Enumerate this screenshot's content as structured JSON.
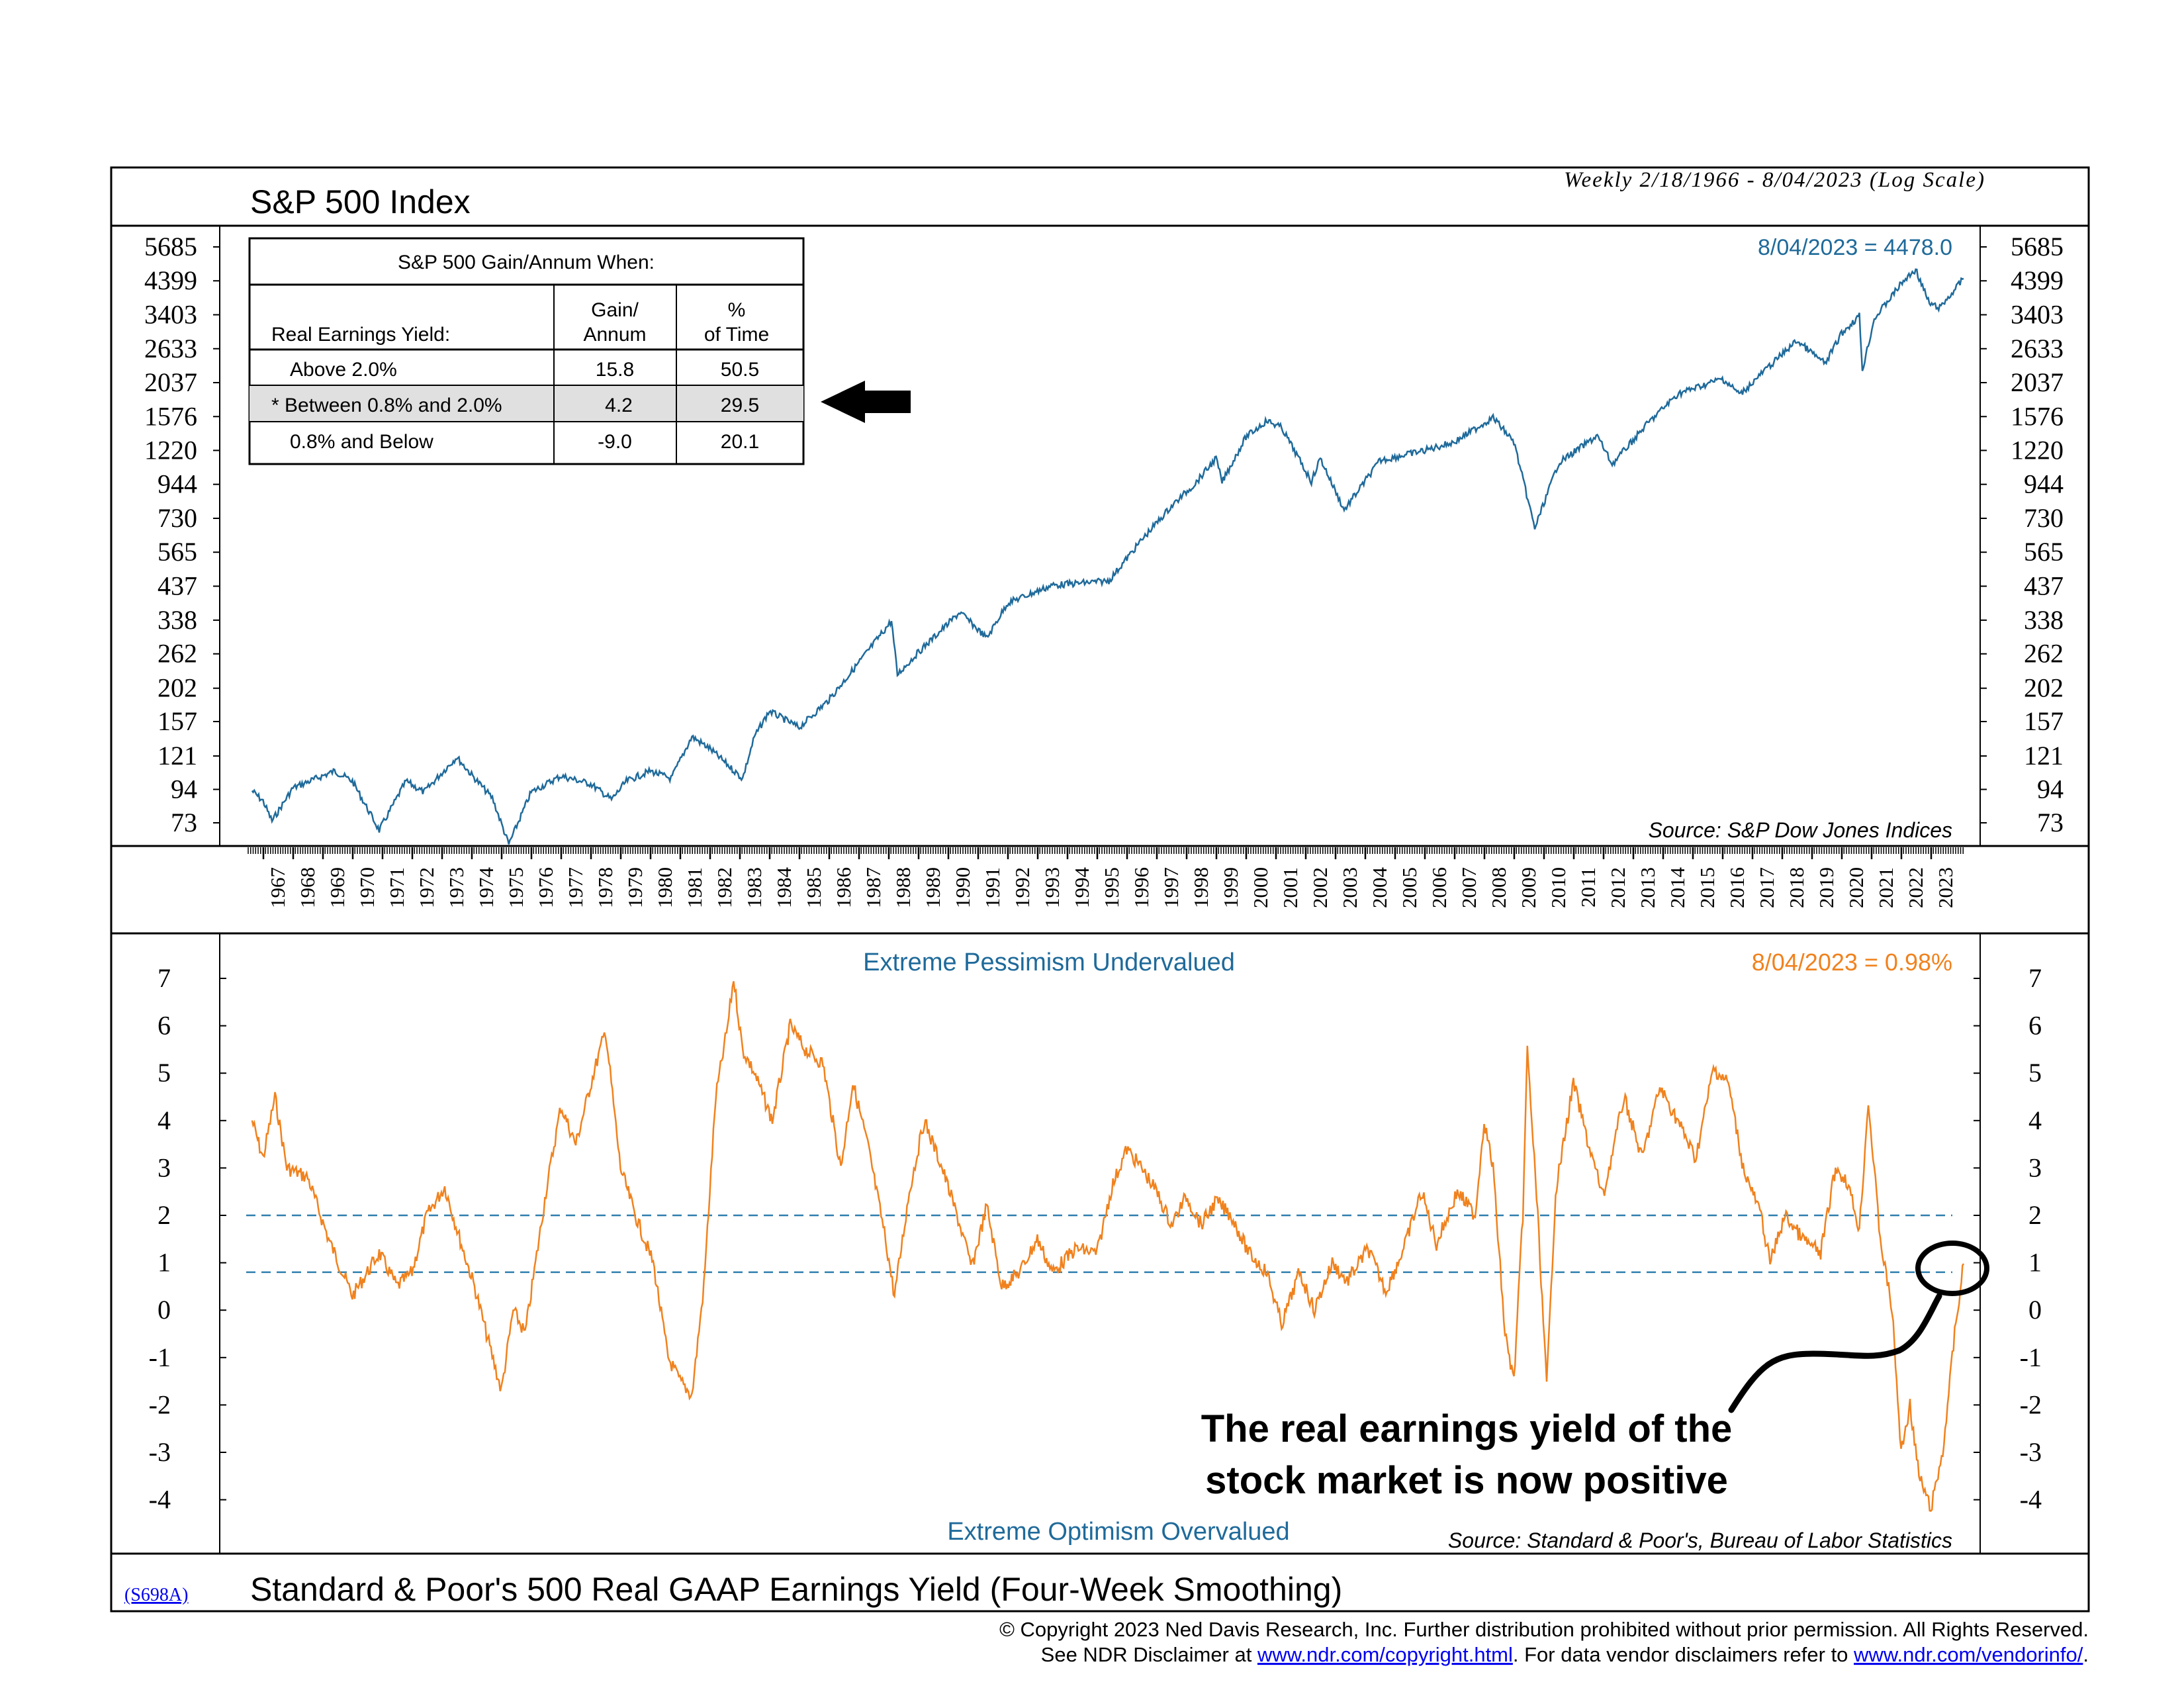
{
  "header": {
    "title": "S&P 500 Index",
    "subtitle": "Weekly 2/18/1966 - 8/04/2023 (Log Scale)"
  },
  "table": {
    "title": "S&P 500 Gain/Annum When:",
    "col_label": "Real Earnings Yield:",
    "col_gain_1": "Gain/",
    "col_gain_2": "Annum",
    "col_pct_1": "%",
    "col_pct_2": "of Time",
    "rows": [
      {
        "label": "Above 2.0%",
        "gain": "15.8",
        "pct": "50.5"
      },
      {
        "label": "* Between 0.8% and 2.0%",
        "gain": "4.2",
        "pct": "29.5",
        "highlight": true
      },
      {
        "label": "0.8% and Below",
        "gain": "-9.0",
        "pct": "20.1"
      }
    ],
    "arrow_icon": "arrow-left-icon"
  },
  "footer": {
    "code": "(S698A)",
    "title": "Standard & Poor's 500 Real GAAP Earnings Yield (Four-Week Smoothing)",
    "copyright": "© Copyright 2023 Ned Davis Research, Inc.  Further distribution prohibited without prior permission.  All Rights Reserved.",
    "disclaimer_prefix": "See NDR Disclaimer at ",
    "link1": "www.ndr.com/copyright.html",
    "disclaimer_mid": ". For data vendor disclaimers refer to ",
    "link2": "www.ndr.com/vendorinfo/",
    "disclaimer_suffix": "."
  },
  "annotation": {
    "line1": "The real earnings yield of the",
    "line2": "stock market is now positive"
  },
  "chart_data": [
    {
      "type": "line",
      "title": "S&P 500 Index",
      "scale": "log",
      "color": "#1f6a9a",
      "last_label": "8/04/2023 = 4478.0",
      "source": "Source: S&P Dow Jones Indices",
      "yticks": [
        73,
        94,
        121,
        157,
        202,
        262,
        338,
        437,
        565,
        730,
        944,
        1220,
        1576,
        2037,
        2633,
        3403,
        4399,
        5685
      ],
      "ylim": [
        73,
        5685
      ],
      "x": [
        1966.13,
        1966.5,
        1966.8,
        1967.5,
        1968.9,
        1969.5,
        1970.4,
        1971.3,
        1971.9,
        1973.0,
        1973.5,
        1974.2,
        1974.75,
        1975.5,
        1976.5,
        1977.5,
        1978.2,
        1978.7,
        1979.5,
        1980.2,
        1980.9,
        1981.5,
        1982.6,
        1983.0,
        1983.5,
        1984.5,
        1985.5,
        1986.5,
        1987.6,
        1987.8,
        1988.5,
        1989.9,
        1990.8,
        1991.5,
        1993.0,
        1994.9,
        1996.0,
        1997.0,
        1997.8,
        1998.5,
        1998.7,
        1999.5,
        2000.2,
        2000.7,
        2001.7,
        2002.0,
        2002.8,
        2004.0,
        2005.5,
        2006.5,
        2007.8,
        2008.5,
        2009.2,
        2010.0,
        2011.3,
        2011.8,
        2013.0,
        2014.0,
        2015.5,
        2016.1,
        2017.0,
        2018.0,
        2018.95,
        2019.5,
        2020.1,
        2020.2,
        2020.6,
        2021.5,
        2021.99,
        2022.45,
        2022.8,
        2023.2,
        2023.6
      ],
      "y": [
        93,
        86,
        74,
        95,
        108,
        100,
        69,
        100,
        92,
        120,
        105,
        88,
        62,
        92,
        104,
        98,
        87,
        100,
        108,
        102,
        140,
        128,
        102,
        140,
        170,
        150,
        185,
        245,
        336,
        224,
        265,
        359,
        295,
        385,
        440,
        455,
        620,
        800,
        950,
        1150,
        960,
        1350,
        1527,
        1450,
        965,
        1150,
        777,
        1130,
        1220,
        1300,
        1565,
        1300,
        677,
        1110,
        1363,
        1099,
        1500,
        1870,
        2100,
        1864,
        2270,
        2800,
        2351,
        2950,
        3380,
        2237,
        3300,
        4300,
        4796,
        3700,
        3583,
        4000,
        4478
      ]
    },
    {
      "type": "line",
      "title": "Standard & Poor's 500 Real GAAP Earnings Yield (Four-Week Smoothing)",
      "color": "#f0821e",
      "last_label": "8/04/2023 = 0.98%",
      "upper_label": "Extreme Pessimism Undervalued",
      "lower_label": "Extreme Optimism Overvalued",
      "source": "Source: Standard & Poor's, Bureau of Labor Statistics",
      "yticks": [
        -4,
        -3,
        -2,
        -1,
        0,
        1,
        2,
        3,
        4,
        5,
        6,
        7
      ],
      "ylim": [
        -4.3,
        7.2
      ],
      "reference_lines": [
        2.0,
        0.8
      ],
      "xticks": [
        1967,
        1968,
        1969,
        1970,
        1971,
        1972,
        1973,
        1974,
        1975,
        1976,
        1977,
        1978,
        1979,
        1980,
        1981,
        1982,
        1983,
        1984,
        1985,
        1986,
        1987,
        1988,
        1989,
        1990,
        1991,
        1992,
        1993,
        1994,
        1995,
        1996,
        1997,
        1998,
        1999,
        2000,
        2001,
        2002,
        2003,
        2004,
        2005,
        2006,
        2007,
        2008,
        2009,
        2010,
        2011,
        2012,
        2013,
        2014,
        2015,
        2016,
        2017,
        2018,
        2019,
        2020,
        2021,
        2022,
        2023
      ],
      "x": [
        1966.13,
        1966.5,
        1966.9,
        1967.3,
        1968.0,
        1968.7,
        1969.5,
        1970.4,
        1971.0,
        1971.5,
        1972.0,
        1972.6,
        1973.2,
        1973.6,
        1974.0,
        1974.5,
        1974.9,
        1975.3,
        1976.0,
        1976.5,
        1977.0,
        1977.6,
        1978.0,
        1978.5,
        1979.0,
        1979.6,
        1980.1,
        1980.5,
        1980.9,
        1981.3,
        1981.7,
        1982.1,
        1982.3,
        1982.6,
        1983.0,
        1983.6,
        1984.2,
        1984.7,
        1985.3,
        1985.9,
        1986.3,
        1986.8,
        1987.4,
        1987.7,
        1988.2,
        1988.7,
        1989.3,
        1989.8,
        1990.3,
        1990.8,
        1991.3,
        1991.9,
        1992.5,
        1993.0,
        1993.8,
        1994.5,
        1995.0,
        1995.5,
        1996.0,
        1996.5,
        1997.0,
        1997.5,
        1998.0,
        1998.5,
        1999.0,
        1999.6,
        2000.2,
        2000.7,
        2001.3,
        2001.8,
        2002.4,
        2002.9,
        2003.6,
        2004.2,
        2004.8,
        2005.4,
        2005.9,
        2006.6,
        2007.2,
        2007.5,
        2007.8,
        2008.2,
        2008.5,
        2008.8,
        2008.95,
        2009.3,
        2009.6,
        2009.9,
        2010.5,
        2011.0,
        2011.5,
        2012.2,
        2012.8,
        2013.4,
        2014.0,
        2014.6,
        2015.2,
        2015.7,
        2016.2,
        2016.8,
        2017.1,
        2017.6,
        2018.2,
        2018.8,
        2019.3,
        2019.7,
        2020.1,
        2020.4,
        2020.8,
        2021.2,
        2021.5,
        2021.8,
        2022.1,
        2022.5,
        2022.9,
        2023.3,
        2023.6
      ],
      "y": [
        4.0,
        3.2,
        4.5,
        3.0,
        2.8,
        1.5,
        0.3,
        1.2,
        0.5,
        0.8,
        2.0,
        2.6,
        1.3,
        0.5,
        -0.5,
        -1.7,
        0.0,
        -0.5,
        2.5,
        4.3,
        3.5,
        5.0,
        5.9,
        3.0,
        2.0,
        1.0,
        -1.0,
        -1.5,
        -1.8,
        0.5,
        4.5,
        6.0,
        7.0,
        5.5,
        5.0,
        4.0,
        6.0,
        5.5,
        5.2,
        3.0,
        4.8,
        3.5,
        1.5,
        0.3,
        2.5,
        4.0,
        3.0,
        2.0,
        0.9,
        2.2,
        0.5,
        0.8,
        1.5,
        0.8,
        1.3,
        1.2,
        2.6,
        3.4,
        3.0,
        2.5,
        1.8,
        2.4,
        1.8,
        2.3,
        2.0,
        1.2,
        0.8,
        -0.3,
        0.8,
        0.0,
        1.0,
        0.6,
        1.3,
        0.4,
        1.3,
        2.5,
        1.4,
        2.5,
        2.0,
        4.0,
        3.0,
        -0.5,
        -1.5,
        2.0,
        5.5,
        2.0,
        -1.6,
        2.5,
        4.8,
        3.5,
        2.4,
        4.5,
        3.2,
        4.7,
        4.0,
        3.2,
        5.1,
        4.8,
        3.0,
        2.0,
        1.0,
        2.0,
        1.5,
        1.2,
        3.0,
        2.7,
        1.7,
        4.4,
        1.5,
        0.0,
        -3.0,
        -2.0,
        -3.5,
        -4.2,
        -3.0,
        -0.5,
        0.98
      ]
    }
  ]
}
